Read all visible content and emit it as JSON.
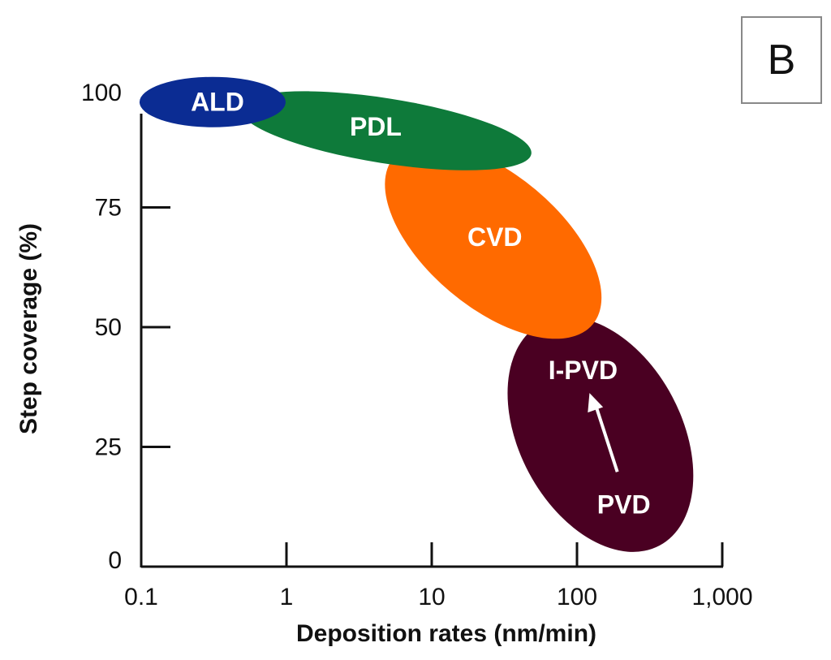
{
  "panel_label": "B",
  "chart_data": {
    "type": "scatter",
    "title": "",
    "xlabel": "Deposition rates (nm/min)",
    "ylabel": "Step coverage (%)",
    "x_scale": "log",
    "xlim": [
      0.1,
      1000
    ],
    "ylim": [
      0,
      100
    ],
    "x_ticks": [
      0.1,
      1,
      10,
      100,
      1000
    ],
    "x_tick_labels": [
      "0.1",
      "1",
      "10",
      "100",
      "1,000"
    ],
    "y_ticks": [
      0,
      25,
      50,
      75,
      100
    ],
    "y_tick_labels": [
      "0",
      "25",
      "50",
      "75",
      "100"
    ],
    "grid": false,
    "regions": [
      {
        "label": "PVD",
        "color": "#4a0022",
        "center_rate": 145,
        "center_coverage": 27.6
      },
      {
        "label": "CVD",
        "color": "#ff6a00",
        "center_rate": 26.5,
        "center_coverage": 68
      },
      {
        "label": "PDL",
        "color": "#0e7a3a",
        "center_rate": 4.8,
        "center_coverage": 91
      },
      {
        "label": "ALD",
        "color": "#0b2c93",
        "center_rate": 0.31,
        "center_coverage": 97
      }
    ],
    "annotations": [
      {
        "label": "I-PVD",
        "rate": 110,
        "coverage": 41
      },
      {
        "label": "PVD",
        "rate": 210,
        "coverage": 13
      },
      {
        "type": "arrow",
        "from": "PVD",
        "to": "I-PVD",
        "color": "#ffffff"
      }
    ]
  }
}
